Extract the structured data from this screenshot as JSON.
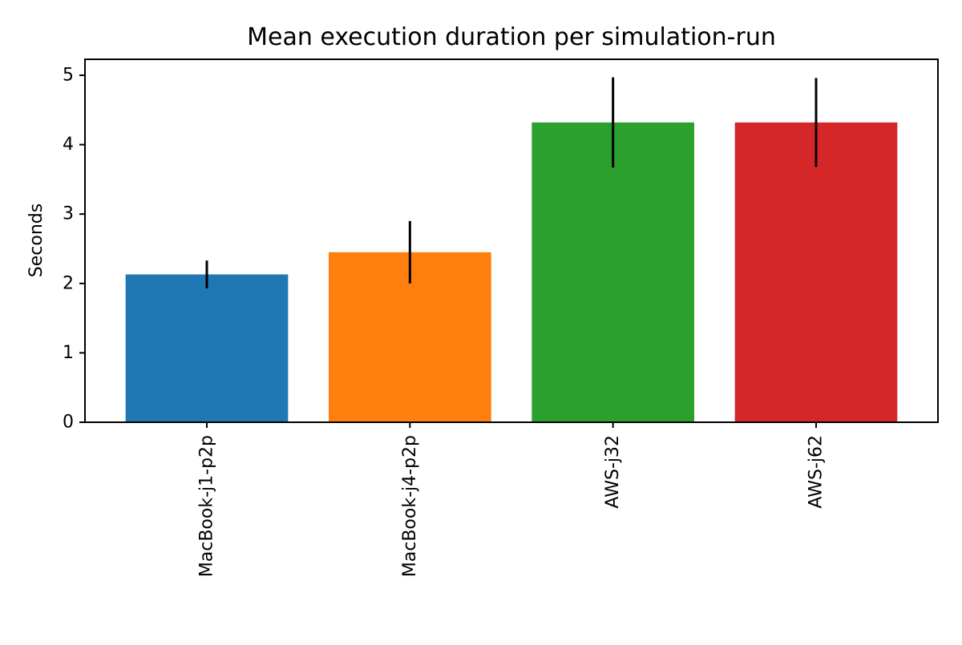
{
  "chart_data": {
    "type": "bar",
    "title": "Mean execution duration per simulation-run",
    "xlabel": "",
    "ylabel": "Seconds",
    "categories": [
      "MacBook-j1-p2p",
      "MacBook-j4-p2p",
      "AWS-j32",
      "AWS-j62"
    ],
    "values": [
      2.13,
      2.45,
      4.32,
      4.32
    ],
    "error": [
      0.2,
      0.45,
      0.65,
      0.64
    ],
    "colors": [
      "#1f77b4",
      "#ff7f0e",
      "#2ca02c",
      "#d62728"
    ],
    "error_color": "#000000",
    "ylim": [
      0,
      5.23
    ],
    "yticks": [
      0,
      1,
      2,
      3,
      4,
      5
    ],
    "ytick_labels": [
      "0",
      "1",
      "2",
      "3",
      "4",
      "5"
    ],
    "grid": false,
    "legend": false,
    "xtick_rotation": "vertical"
  }
}
